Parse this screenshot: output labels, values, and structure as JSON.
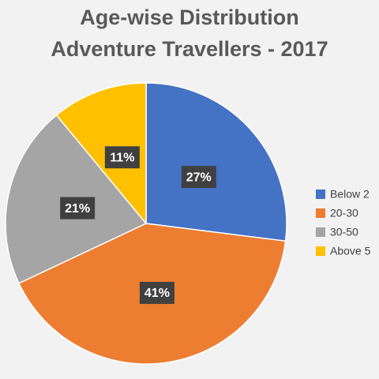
{
  "chart_data": {
    "type": "pie",
    "title": [
      "Age-wise Distribution",
      "Adventure Travellers - 2017"
    ],
    "categories": [
      "Below 2",
      "20-30",
      "30-50",
      "Above 5"
    ],
    "values": [
      27,
      41,
      21,
      11
    ],
    "value_labels": [
      "27%",
      "41%",
      "21%",
      "11%"
    ],
    "colors": [
      "#4472c4",
      "#ed7d31",
      "#a5a5a5",
      "#ffc000"
    ],
    "legend": "right"
  }
}
